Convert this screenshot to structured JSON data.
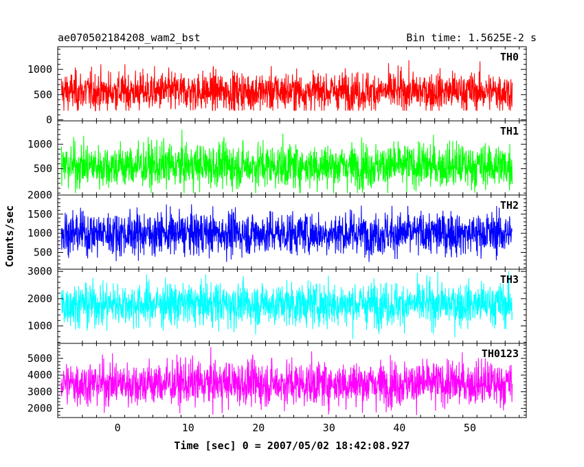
{
  "header": {
    "title": "ae070502184208_wam2_bst",
    "bin_time": "Bin time: 1.5625E-2 s"
  },
  "axes": {
    "xlabel": "Time [sec] 0 = 2007/05/02 18:42:08.927",
    "ylabel": "Counts/sec"
  },
  "chart_data": {
    "type": "line",
    "title": "ae070502184208_wam2_bst",
    "subtitle": "Bin time: 1.5625E-2 s",
    "xlabel": "Time [sec] 0 = 2007/05/02 18:42:08.927",
    "ylabel": "Counts/sec",
    "xlim": [
      -8.5,
      58
    ],
    "x_range_data": [
      -8,
      56
    ],
    "bin_time": 0.015625,
    "x_ticks": [
      0,
      10,
      20,
      30,
      40,
      50
    ],
    "grid": false,
    "legend": "none",
    "panels": [
      {
        "name": "TH0",
        "color": "#ff0000",
        "ylim": [
          -20,
          1450
        ],
        "y_ticks": [
          0,
          500,
          1000
        ],
        "mean": 560,
        "range": [
          180,
          1400
        ]
      },
      {
        "name": "TH1",
        "color": "#00ff00",
        "ylim": [
          -40,
          1480
        ],
        "y_ticks": [
          500,
          1000
        ],
        "mean": 560,
        "range": [
          0,
          1430
        ]
      },
      {
        "name": "TH2",
        "color": "#0000ff",
        "ylim": [
          60,
          2000
        ],
        "y_ticks": [
          500,
          1000,
          1500,
          2000
        ],
        "mean": 1000,
        "range": [
          250,
          2000
        ]
      },
      {
        "name": "TH3",
        "color": "#00ffff",
        "ylim": [
          360,
          3080
        ],
        "y_ticks": [
          1000,
          2000,
          3000
        ],
        "mean": 1800,
        "range": [
          500,
          3000
        ]
      },
      {
        "name": "TH0123",
        "color": "#ff00ff",
        "ylim": [
          1450,
          5900
        ],
        "y_ticks": [
          2000,
          3000,
          4000,
          5000
        ],
        "mean": 3500,
        "range": [
          1600,
          5800
        ]
      }
    ]
  }
}
